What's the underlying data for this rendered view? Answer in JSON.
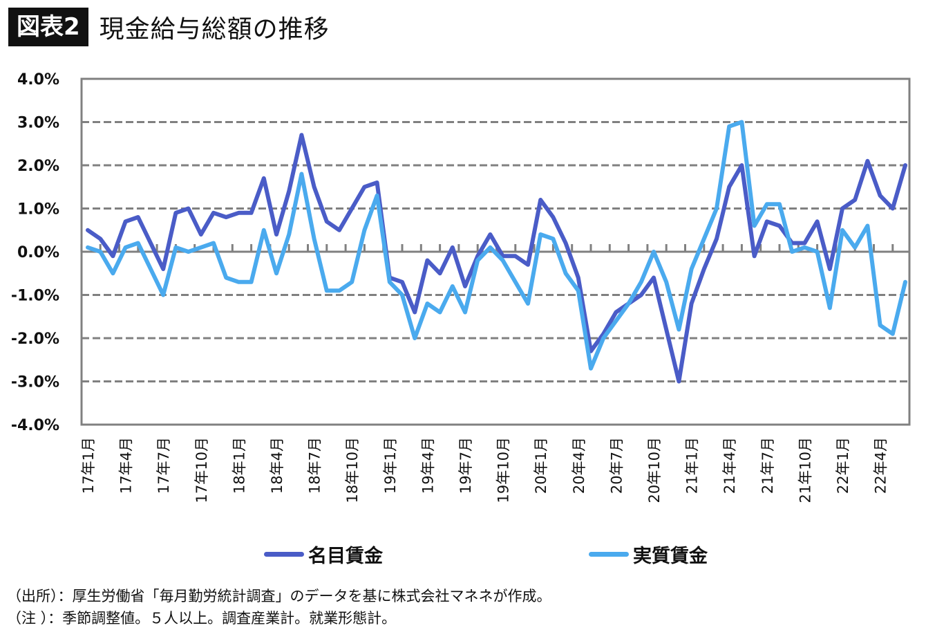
{
  "header": {
    "badge": "図表2",
    "title": "現金給与総額の推移"
  },
  "chart_data": {
    "type": "line",
    "title": "現金給与総額の推移",
    "xlabel": "",
    "ylabel": "",
    "ylim": [
      -4.0,
      4.0
    ],
    "y_ticks": [
      "4.0%",
      "3.0%",
      "2.0%",
      "1.0%",
      "0.0%",
      "-1.0%",
      "-2.0%",
      "-3.0%",
      "-4.0%"
    ],
    "y_tick_values": [
      4,
      3,
      2,
      1,
      0,
      -1,
      -2,
      -3,
      -4
    ],
    "grid": "dashed horizontal",
    "legend_position": "bottom",
    "x": [
      "17年1月",
      "17年2月",
      "17年3月",
      "17年4月",
      "17年5月",
      "17年6月",
      "17年7月",
      "17年8月",
      "17年9月",
      "17年10月",
      "17年11月",
      "17年12月",
      "18年1月",
      "18年2月",
      "18年3月",
      "18年4月",
      "18年5月",
      "18年6月",
      "18年7月",
      "18年8月",
      "18年9月",
      "18年10月",
      "18年11月",
      "18年12月",
      "19年1月",
      "19年2月",
      "19年3月",
      "19年4月",
      "19年5月",
      "19年6月",
      "19年7月",
      "19年8月",
      "19年9月",
      "19年10月",
      "19年11月",
      "19年12月",
      "20年1月",
      "20年2月",
      "20年3月",
      "20年4月",
      "20年5月",
      "20年6月",
      "20年7月",
      "20年8月",
      "20年9月",
      "20年10月",
      "20年11月",
      "20年12月",
      "21年1月",
      "21年2月",
      "21年3月",
      "21年4月",
      "21年5月",
      "21年6月",
      "21年7月",
      "21年8月",
      "21年9月",
      "21年10月",
      "21年11月",
      "21年12月",
      "22年1月",
      "22年2月",
      "22年3月",
      "22年4月",
      "22年5月",
      "22年6月"
    ],
    "x_tick_labels": [
      "17年1月",
      "17年4月",
      "17年7月",
      "17年10月",
      "18年1月",
      "18年4月",
      "18年7月",
      "18年10月",
      "19年1月",
      "19年4月",
      "19年7月",
      "19年10月",
      "20年1月",
      "20年4月",
      "20年7月",
      "20年10月",
      "21年1月",
      "21年4月",
      "21年7月",
      "21年10月",
      "22年1月",
      "22年4月"
    ],
    "x_tick_every": 3,
    "series": [
      {
        "name": "名目賃金",
        "color": "#4a5cc7",
        "values": [
          0.5,
          0.3,
          -0.1,
          0.7,
          0.8,
          0.2,
          -0.4,
          0.9,
          1.0,
          0.4,
          0.9,
          0.8,
          0.9,
          0.9,
          1.7,
          0.4,
          1.4,
          2.7,
          1.5,
          0.7,
          0.5,
          1.0,
          1.5,
          1.6,
          -0.6,
          -0.7,
          -1.4,
          -0.2,
          -0.5,
          0.1,
          -0.8,
          -0.1,
          0.4,
          -0.1,
          -0.1,
          -0.3,
          1.2,
          0.8,
          0.2,
          -0.6,
          -2.3,
          -1.9,
          -1.4,
          -1.2,
          -1.0,
          -0.6,
          -1.8,
          -3.0,
          -1.2,
          -0.4,
          0.3,
          1.5,
          2.0,
          -0.1,
          0.7,
          0.6,
          0.2,
          0.2,
          0.7,
          -0.4,
          1.0,
          1.2,
          2.1,
          1.3,
          1.0,
          2.0
        ]
      },
      {
        "name": "実質賃金",
        "color": "#4aaaee",
        "values": [
          0.1,
          0.0,
          -0.5,
          0.1,
          0.2,
          -0.4,
          -1.0,
          0.1,
          0.0,
          0.1,
          0.2,
          -0.6,
          -0.7,
          -0.7,
          0.5,
          -0.5,
          0.4,
          1.8,
          0.3,
          -0.9,
          -0.9,
          -0.7,
          0.5,
          1.3,
          -0.7,
          -1.0,
          -2.0,
          -1.2,
          -1.4,
          -0.8,
          -1.4,
          -0.2,
          0.1,
          -0.2,
          -0.7,
          -1.2,
          0.4,
          0.3,
          -0.5,
          -0.9,
          -2.7,
          -2.0,
          -1.6,
          -1.2,
          -0.7,
          0.0,
          -0.7,
          -1.8,
          -0.4,
          0.3,
          1.0,
          2.9,
          3.0,
          0.6,
          1.1,
          1.1,
          0.0,
          0.1,
          0.0,
          -1.3,
          0.5,
          0.1,
          0.6,
          -1.7,
          -1.9,
          -0.7
        ]
      }
    ]
  },
  "legend": {
    "items": [
      {
        "label": "名目賃金",
        "color": "#4a5cc7"
      },
      {
        "label": "実質賃金",
        "color": "#4aaaee"
      }
    ]
  },
  "notes": {
    "source": "（出所）：厚生労働省「毎月勤労統計調査」のデータを基に株式会社マネネが作成。",
    "note": "（注 ）：季節調整値。５人以上。調査産業計。就業形態計。"
  }
}
